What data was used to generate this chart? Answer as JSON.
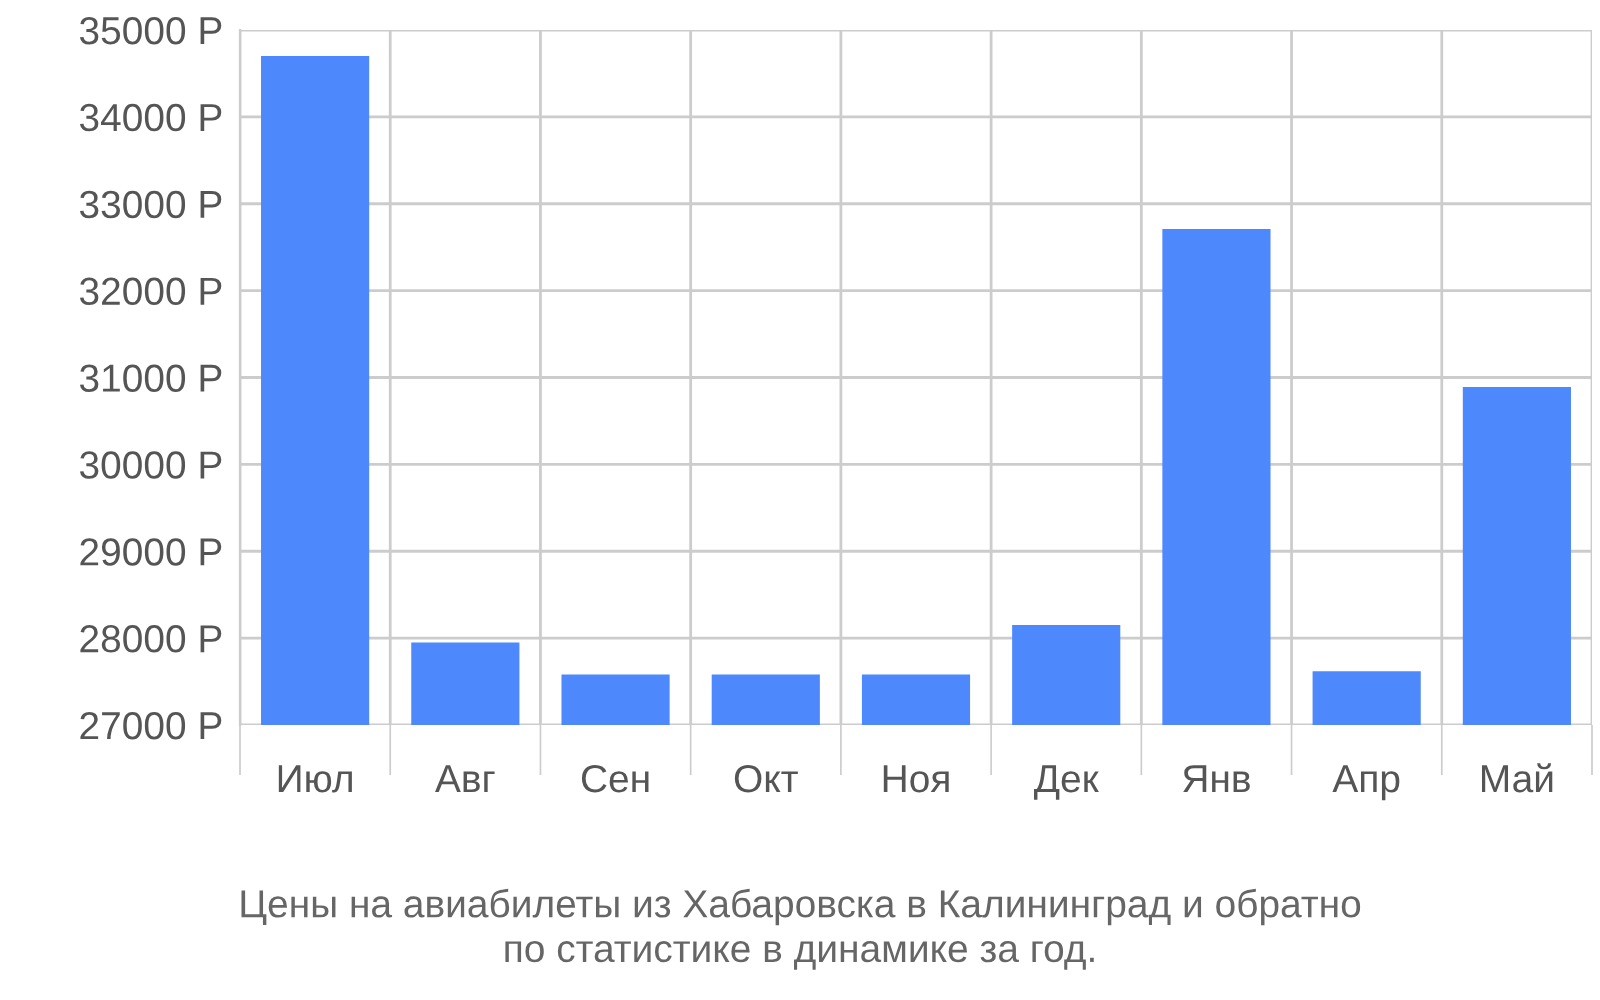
{
  "chart_data": {
    "type": "bar",
    "title": "Цены на авиабилеты из Хабаровска в Калининград и обратно\nпо статистике в динамике за год.",
    "categories": [
      "Июл",
      "Авг",
      "Сен",
      "Окт",
      "Ноя",
      "Дек",
      "Янв",
      "Апр",
      "Май"
    ],
    "values": [
      34700,
      27950,
      27580,
      27580,
      27580,
      28150,
      32710,
      27620,
      30890
    ],
    "color": "#4d88fd",
    "ylim": [
      27000,
      35000
    ],
    "yticks": [
      {
        "value": 27000,
        "label": "27000 Р"
      },
      {
        "value": 28000,
        "label": "28000 Р"
      },
      {
        "value": 29000,
        "label": "29000 Р"
      },
      {
        "value": 30000,
        "label": "30000 Р"
      },
      {
        "value": 31000,
        "label": "31000 Р"
      },
      {
        "value": 32000,
        "label": "32000 Р"
      },
      {
        "value": 33000,
        "label": "33000 Р"
      },
      {
        "value": 34000,
        "label": "34000 Р"
      },
      {
        "value": 35000,
        "label": "35000 Р"
      }
    ],
    "grid": true
  }
}
